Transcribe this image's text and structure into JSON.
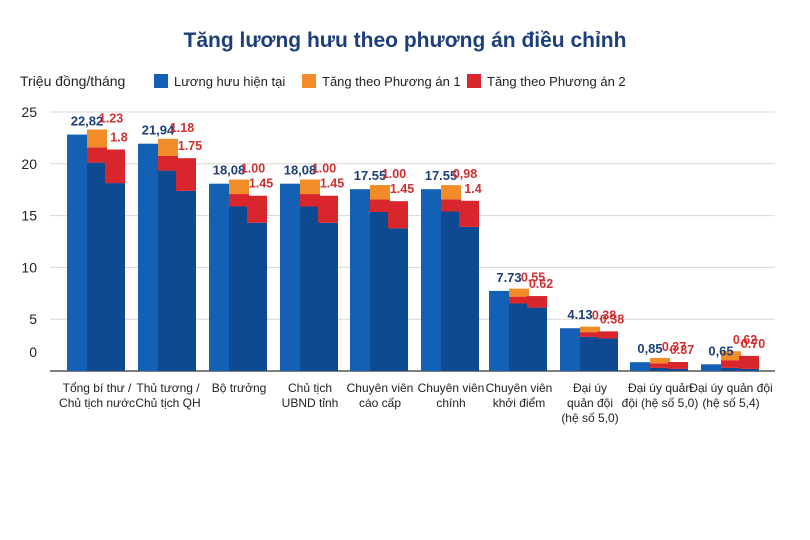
{
  "chart_data": {
    "type": "bar",
    "title": "Tăng lương hưu theo phương án điều chỉnh",
    "ylabel": "Triệu đồng/tháng",
    "ylim": [
      0,
      25
    ],
    "yticks": [
      0,
      5,
      10,
      15,
      20,
      25
    ],
    "grid": true,
    "legend_position": "top",
    "colors": {
      "current": "#1460b4",
      "current_dark": "#0d4a92",
      "plan1": "#f28c28",
      "plan2": "#d8262c",
      "label_current": "#1c3f7a",
      "label_increase": "#d32f2f"
    },
    "legend": [
      {
        "key": "current",
        "label": "Lương hưu hiện tại"
      },
      {
        "key": "plan1",
        "label": "Tăng theo Phương án 1"
      },
      {
        "key": "plan2",
        "label": "Tăng theo Phương án 2"
      }
    ],
    "categories": [
      {
        "lines": [
          "Tổng bí thư /",
          "Chủ tịch nước"
        ],
        "current_label": "22,82",
        "plan1_label": "1.23",
        "plan2_label": "1.8",
        "current": 22.82,
        "plan1": 1.23,
        "plan2": 1.8
      },
      {
        "lines": [
          "Thủ tương /",
          "Chủ tịch QH"
        ],
        "current_label": "21,94",
        "plan1_label": "1.18",
        "plan2_label": "1.75",
        "current": 21.94,
        "plan1": 1.18,
        "plan2": 1.75
      },
      {
        "lines": [
          "Bộ trưởng"
        ],
        "current_label": "18,08",
        "plan1_label": "1.00",
        "plan2_label": "1.45",
        "current": 18.08,
        "plan1": 1.0,
        "plan2": 1.45
      },
      {
        "lines": [
          "Chủ tịch",
          "UBND tỉnh"
        ],
        "current_label": "18,08",
        "plan1_label": "1.00",
        "plan2_label": "1.45",
        "current": 18.08,
        "plan1": 1.0,
        "plan2": 1.45
      },
      {
        "lines": [
          "Chuyên viên",
          "cáo cấp"
        ],
        "current_label": "17.55",
        "plan1_label": "1.00",
        "plan2_label": "1.45",
        "current": 17.55,
        "plan1": 1.0,
        "plan2": 1.45
      },
      {
        "lines": [
          "Chuyên viên",
          "chính"
        ],
        "current_label": "17.55",
        "plan1_label": "0,98",
        "plan2_label": "1.4",
        "current": 17.55,
        "plan1": 0.98,
        "plan2": 1.4
      },
      {
        "lines": [
          "Chuyên viên",
          "khởi điểm"
        ],
        "current_label": "7.73",
        "plan1_label": "0.55",
        "plan2_label": "0.62",
        "current": 7.73,
        "plan1": 0.55,
        "plan2": 0.62
      },
      {
        "lines": [
          "Đại úy",
          "quản đội",
          "(hệ số 5,0)"
        ],
        "current_label": "4.13",
        "plan1_label": "0.38",
        "plan2_label": "0.38",
        "current": 4.13,
        "plan1": 0.38,
        "plan2": 0.38
      },
      {
        "lines": [
          "Đại úy quản",
          "đội (hệ số 5,0)"
        ],
        "current_label": "0,85",
        "plan1_label": "0.37",
        "plan2_label": "0.37",
        "current": 0.85,
        "plan1": 0.37,
        "plan2": 0.37
      },
      {
        "lines": [
          "Đại úy quản đội",
          "(hệ số 5,4)"
        ],
        "current_label": "0,65",
        "plan1_label": "0,62",
        "plan2_label": "0.70",
        "current": 0.65,
        "plan1": 0.62,
        "plan2": 0.7
      }
    ]
  }
}
